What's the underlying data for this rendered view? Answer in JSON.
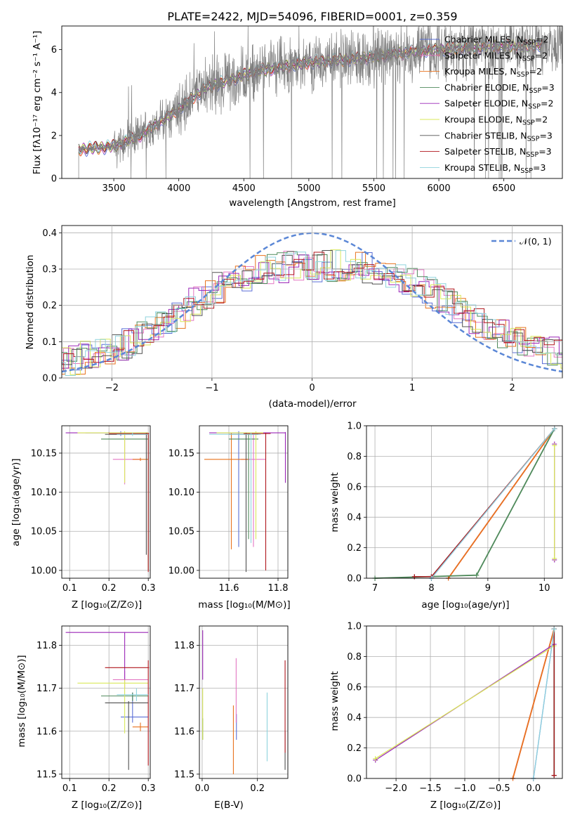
{
  "figure": {
    "title": "PLATE=2422, MJD=54096, FIBERID=0001, z=0.359"
  },
  "models": [
    {
      "name": "Chabrier MILES, N$_{SSP}$=2",
      "label": "Chabrier MILES, N",
      "sub": "SSP",
      "tail": "=2",
      "color": "#5b6fd6"
    },
    {
      "name": "Salpeter MILES, N$_{SSP}$=2",
      "label": "Salpeter MILES, N",
      "sub": "SSP",
      "tail": "=2",
      "color": "#e377c2"
    },
    {
      "name": "Kroupa MILES, N$_{SSP}$=2",
      "label": "Kroupa MILES, N",
      "sub": "SSP",
      "tail": "=2",
      "color": "#e8731e"
    },
    {
      "name": "Chabrier ELODIE, N$_{SSP}$=3",
      "label": "Chabrier ELODIE, N",
      "sub": "SSP",
      "tail": "=3",
      "color": "#4f8a5b"
    },
    {
      "name": "Salpeter ELODIE, N$_{SSP}$=2",
      "label": "Salpeter ELODIE, N",
      "sub": "SSP",
      "tail": "=2",
      "color": "#9b27b8"
    },
    {
      "name": "Kroupa ELODIE, N$_{SSP}$=2",
      "label": "Kroupa ELODIE, N",
      "sub": "SSP",
      "tail": "=2",
      "color": "#d9e85a"
    },
    {
      "name": "Chabrier STELIB, N$_{SSP}$=3",
      "label": "Chabrier STELIB, N",
      "sub": "SSP",
      "tail": "=3",
      "color": "#505050"
    },
    {
      "name": "Salpeter STELIB, N$_{SSP}$=3",
      "label": "Salpeter STELIB, N",
      "sub": "SSP",
      "tail": "=3",
      "color": "#b0161c"
    },
    {
      "name": "Kroupa STELIB, N$_{SSP}$=3",
      "label": "Kroupa STELIB, N",
      "sub": "SSP",
      "tail": "=3",
      "color": "#8fd3dd"
    }
  ],
  "chart_data": [
    {
      "id": "spectrum",
      "type": "line",
      "xlabel": "wavelength [Angstrom, rest frame]",
      "ylabel": "Flux [$f_\\lambda 10^{-17}$ erg cm$^{-2}$ s$^{-1}$ A$^{-1}$]",
      "xlim": [
        3100,
        6950
      ],
      "ylim": [
        0,
        7.1
      ],
      "xticks": [
        3500,
        4000,
        4500,
        5000,
        5500,
        6000,
        6500
      ],
      "yticks": [
        0,
        2,
        4,
        6
      ],
      "data_color": "#7f7f7f",
      "data_start": 3230,
      "continuum": {
        "x": [
          3230,
          3500,
          3700,
          3950,
          4200,
          4600,
          5000,
          5400,
          5800,
          6200,
          6800
        ],
        "y": [
          1.35,
          1.5,
          2.0,
          3.0,
          4.2,
          5.0,
          5.4,
          5.6,
          5.9,
          6.1,
          6.2
        ]
      },
      "legend": "top-right",
      "grid": false
    },
    {
      "id": "residuals",
      "type": "histogram",
      "xlabel": "(data-model)/error",
      "ylabel": "Normed distribution",
      "xlim": [
        -2.5,
        2.5
      ],
      "ylim": [
        0,
        0.42
      ],
      "xticks": [
        -2,
        -1,
        0,
        1,
        2
      ],
      "yticks": [
        0.0,
        0.1,
        0.2,
        0.3,
        0.4
      ],
      "bin_width": 0.1,
      "gaussian": {
        "label": "$\\mathcal{N}(0,1)$",
        "color": "#5b87d6"
      },
      "envelope": {
        "x": [
          -2.5,
          -2.0,
          -1.5,
          -1.0,
          -0.5,
          0.0,
          0.5,
          1.0,
          1.5,
          2.0,
          2.5
        ],
        "y": [
          0.04,
          0.08,
          0.14,
          0.24,
          0.3,
          0.31,
          0.31,
          0.27,
          0.18,
          0.11,
          0.07
        ]
      },
      "legend": "top-right",
      "grid": true
    },
    {
      "id": "age-vs-Z",
      "type": "scatter",
      "xlabel": "Z [$\\log_{10}(Z/Z_\\odot)$]",
      "ylabel": "age  [$\\log_{10}(age/yr)$]",
      "xlim": [
        0.08,
        0.305
      ],
      "ylim": [
        9.99,
        10.185
      ],
      "xticks": [
        0.1,
        0.2,
        0.3
      ],
      "yticks": [
        10.0,
        10.05,
        10.1,
        10.15
      ],
      "points": [
        {
          "model": 0,
          "x": 0.23,
          "y": 10.176,
          "xlo": 0.14,
          "xhi": 0.3,
          "ylo": 10.172,
          "yhi": 10.178
        },
        {
          "model": 1,
          "x": 0.24,
          "y": 10.142,
          "xlo": 0.21,
          "xhi": 0.28,
          "ylo": 10.11,
          "yhi": 10.176
        },
        {
          "model": 2,
          "x": 0.28,
          "y": 10.142,
          "xlo": 0.26,
          "xhi": 0.3,
          "ylo": 10.14,
          "yhi": 10.144
        },
        {
          "model": 3,
          "x": 0.3,
          "y": 10.168,
          "xlo": 0.18,
          "xhi": 0.3,
          "ylo": 10.0,
          "yhi": 10.175
        },
        {
          "model": 4,
          "x": 0.2,
          "y": 10.176,
          "xlo": 0.09,
          "xhi": 0.3,
          "ylo": 10.175,
          "yhi": 10.177
        },
        {
          "model": 5,
          "x": 0.24,
          "y": 10.176,
          "xlo": 0.12,
          "xhi": 0.3,
          "ylo": 10.112,
          "yhi": 10.178
        },
        {
          "model": 6,
          "x": 0.295,
          "y": 10.174,
          "xlo": 0.19,
          "xhi": 0.3,
          "ylo": 10.02,
          "yhi": 10.176
        },
        {
          "model": 7,
          "x": 0.3,
          "y": 10.175,
          "xlo": 0.2,
          "xhi": 0.302,
          "ylo": 9.998,
          "yhi": 10.176
        },
        {
          "model": 8,
          "x": 0.26,
          "y": 10.174,
          "xlo": 0.22,
          "xhi": 0.3,
          "ylo": 10.172,
          "yhi": 10.176
        }
      ],
      "grid": true
    },
    {
      "id": "age-vs-mass",
      "type": "scatter",
      "xlabel": "mass [$\\log_{10}(M/M_\\odot)$]",
      "ylabel": "",
      "xlim": [
        11.48,
        11.84
      ],
      "ylim": [
        9.99,
        10.185
      ],
      "xticks": [
        11.6,
        11.8
      ],
      "yticks": [
        10.0,
        10.05,
        10.1,
        10.15
      ],
      "points": [
        {
          "model": 0,
          "x": 11.64,
          "y": 10.176,
          "xlo": 11.55,
          "xhi": 11.74,
          "ylo": 10.03,
          "yhi": 10.178
        },
        {
          "model": 1,
          "x": 11.7,
          "y": 10.142,
          "xlo": 11.65,
          "xhi": 11.75,
          "ylo": 10.03,
          "yhi": 10.176
        },
        {
          "model": 2,
          "x": 11.61,
          "y": 10.142,
          "xlo": 11.5,
          "xhi": 11.68,
          "ylo": 10.027,
          "yhi": 10.176
        },
        {
          "model": 3,
          "x": 11.68,
          "y": 10.168,
          "xlo": 11.6,
          "xhi": 11.72,
          "ylo": 10.04,
          "yhi": 10.175
        },
        {
          "model": 4,
          "x": 11.83,
          "y": 10.176,
          "xlo": 11.52,
          "xhi": 11.83,
          "ylo": 10.112,
          "yhi": 10.177
        },
        {
          "model": 5,
          "x": 11.71,
          "y": 10.176,
          "xlo": 11.55,
          "xhi": 11.74,
          "ylo": 10.04,
          "yhi": 10.178
        },
        {
          "model": 6,
          "x": 11.67,
          "y": 10.174,
          "xlo": 11.6,
          "xhi": 11.72,
          "ylo": 9.998,
          "yhi": 10.176
        },
        {
          "model": 7,
          "x": 11.75,
          "y": 10.175,
          "xlo": 11.66,
          "xhi": 11.77,
          "ylo": 10.0,
          "yhi": 10.176
        },
        {
          "model": 8,
          "x": 11.69,
          "y": 10.174,
          "xlo": 11.52,
          "xhi": 11.73,
          "ylo": 10.035,
          "yhi": 10.176
        }
      ],
      "grid": true
    },
    {
      "id": "mass-vs-Z",
      "type": "scatter",
      "xlabel": "Z [$\\log_{10}(Z/Z_\\odot)$]",
      "ylabel": "mass [$\\log_{10}(M/M_\\odot)$]",
      "xlim": [
        0.08,
        0.305
      ],
      "ylim": [
        11.49,
        11.845
      ],
      "xticks": [
        0.1,
        0.2,
        0.3
      ],
      "yticks": [
        11.5,
        11.6,
        11.7,
        11.8
      ],
      "points": [
        {
          "model": 0,
          "x": 0.26,
          "y": 11.633,
          "xlo": 0.23,
          "xhi": 0.3,
          "ylo": 11.62,
          "yhi": 11.69
        },
        {
          "model": 1,
          "x": 0.24,
          "y": 11.72,
          "xlo": 0.21,
          "xhi": 0.3,
          "ylo": 11.7,
          "yhi": 11.74
        },
        {
          "model": 2,
          "x": 0.28,
          "y": 11.61,
          "xlo": 0.26,
          "xhi": 0.3,
          "ylo": 11.6,
          "yhi": 11.62
        },
        {
          "model": 3,
          "x": 0.26,
          "y": 11.682,
          "xlo": 0.18,
          "xhi": 0.3,
          "ylo": 11.67,
          "yhi": 11.69
        },
        {
          "model": 4,
          "x": 0.24,
          "y": 11.83,
          "xlo": 0.09,
          "xhi": 0.3,
          "ylo": 11.72,
          "yhi": 11.831
        },
        {
          "model": 5,
          "x": 0.24,
          "y": 11.712,
          "xlo": 0.12,
          "xhi": 0.3,
          "ylo": 11.595,
          "yhi": 11.72
        },
        {
          "model": 6,
          "x": 0.25,
          "y": 11.666,
          "xlo": 0.19,
          "xhi": 0.3,
          "ylo": 11.51,
          "yhi": 11.67
        },
        {
          "model": 7,
          "x": 0.3,
          "y": 11.748,
          "xlo": 0.19,
          "xhi": 0.302,
          "ylo": 11.52,
          "yhi": 11.765
        },
        {
          "model": 8,
          "x": 0.27,
          "y": 11.685,
          "xlo": 0.22,
          "xhi": 0.3,
          "ylo": 11.67,
          "yhi": 11.7
        }
      ],
      "grid": true
    },
    {
      "id": "mass-vs-EBV",
      "type": "scatter",
      "xlabel": "E(B-V)",
      "ylabel": "",
      "xlim": [
        -0.01,
        0.31
      ],
      "ylim": [
        11.49,
        11.845
      ],
      "xticks": [
        0.0,
        0.2
      ],
      "yticks": [
        11.5,
        11.6,
        11.7,
        11.8
      ],
      "points": [
        {
          "model": 0,
          "x": 0.124,
          "y": 11.61,
          "ylo": 11.58,
          "yhi": 11.64
        },
        {
          "model": 1,
          "x": 0.123,
          "y": 11.7,
          "ylo": 11.62,
          "yhi": 11.77
        },
        {
          "model": 2,
          "x": 0.113,
          "y": 11.58,
          "ylo": 11.5,
          "yhi": 11.66
        },
        {
          "model": 3,
          "x": 0.002,
          "y": 11.6,
          "ylo": 11.58,
          "yhi": 11.63
        },
        {
          "model": 4,
          "x": 0.002,
          "y": 11.78,
          "ylo": 11.72,
          "yhi": 11.835
        },
        {
          "model": 5,
          "x": 0.002,
          "y": 11.64,
          "ylo": 11.58,
          "yhi": 11.7
        },
        {
          "model": 6,
          "x": 0.3,
          "y": 11.56,
          "ylo": 11.51,
          "yhi": 11.6
        },
        {
          "model": 7,
          "x": 0.3,
          "y": 11.67,
          "ylo": 11.55,
          "yhi": 11.765
        },
        {
          "model": 8,
          "x": 0.235,
          "y": 11.62,
          "ylo": 11.53,
          "yhi": 11.69
        }
      ],
      "grid": true
    },
    {
      "id": "weight-vs-age",
      "type": "line",
      "xlabel": "age  [$\\log_{10}(age/yr)$]",
      "ylabel": "mass weight",
      "xlim": [
        6.85,
        10.32
      ],
      "ylim": [
        0,
        1
      ],
      "xticks": [
        7,
        8,
        9,
        10
      ],
      "yticks": [
        0.0,
        0.2,
        0.4,
        0.6,
        0.8,
        1.0
      ],
      "series": [
        {
          "model": 0,
          "x": [
            8.0,
            10.18
          ],
          "y": [
            0.0,
            0.98
          ]
        },
        {
          "model": 1,
          "x": [
            8.3,
            10.18
          ],
          "y": [
            0.0,
            0.98
          ]
        },
        {
          "model": 2,
          "x": [
            8.3,
            10.18
          ],
          "y": [
            0.0,
            0.98
          ]
        },
        {
          "model": 3,
          "x": [
            7.0,
            8.8,
            10.18
          ],
          "y": [
            0.0,
            0.02,
            0.98
          ]
        },
        {
          "model": 4,
          "x": [
            10.18,
            10.18
          ],
          "y": [
            0.12,
            0.88
          ]
        },
        {
          "model": 5,
          "x": [
            10.18,
            10.18
          ],
          "y": [
            0.13,
            0.87
          ]
        },
        {
          "model": 6,
          "x": [
            7.7,
            8.0,
            10.18
          ],
          "y": [
            0.01,
            0.01,
            0.98
          ]
        },
        {
          "model": 7,
          "x": [
            7.7,
            8.0,
            10.18
          ],
          "y": [
            0.01,
            0.01,
            0.98
          ]
        },
        {
          "model": 8,
          "x": [
            8.0,
            10.18
          ],
          "y": [
            0.0,
            0.98
          ]
        }
      ],
      "grid": true
    },
    {
      "id": "weight-vs-Z",
      "type": "line",
      "xlabel": "Z [$\\log_{10}(Z/Z_\\odot)$]",
      "ylabel": "mass weight",
      "xlim": [
        -2.43,
        0.42
      ],
      "ylim": [
        0,
        1
      ],
      "xticks": [
        -2.0,
        -1.5,
        -1.0,
        -0.5,
        0.0
      ],
      "yticks": [
        0.0,
        0.2,
        0.4,
        0.6,
        0.8,
        1.0
      ],
      "series": [
        {
          "model": 0,
          "x": [
            0.0,
            0.3
          ],
          "y": [
            0.0,
            0.98
          ]
        },
        {
          "model": 1,
          "x": [
            -0.3,
            0.3
          ],
          "y": [
            0.0,
            0.98
          ]
        },
        {
          "model": 2,
          "x": [
            -0.3,
            0.3
          ],
          "y": [
            0.0,
            0.98
          ]
        },
        {
          "model": 3,
          "x": [
            0.3,
            0.3
          ],
          "y": [
            0.02,
            0.98
          ]
        },
        {
          "model": 4,
          "x": [
            -2.3,
            0.3
          ],
          "y": [
            0.12,
            0.88
          ]
        },
        {
          "model": 5,
          "x": [
            -2.3,
            0.3
          ],
          "y": [
            0.13,
            0.87
          ]
        },
        {
          "model": 6,
          "x": [
            0.3,
            0.3
          ],
          "y": [
            0.02,
            0.98
          ]
        },
        {
          "model": 7,
          "x": [
            0.3,
            0.3
          ],
          "y": [
            0.02,
            0.98
          ]
        },
        {
          "model": 8,
          "x": [
            0.0,
            0.3
          ],
          "y": [
            0.0,
            0.98
          ]
        }
      ],
      "grid": true
    }
  ],
  "display": {
    "spectrum_xlabel": "wavelength [Angstrom, rest frame]",
    "spectrum_ylabel": "Flux [fλ10⁻¹⁷ erg cm⁻² s⁻¹ A⁻¹]",
    "resid_xlabel": "(data-model)/error",
    "resid_ylabel": "Normed distribution",
    "gauss_label": "𝒩(0, 1)",
    "z_label": "Z [log₁₀(Z/Z⊙)]",
    "age_label": "age  [log₁₀(age/yr)]",
    "mass_label": "mass [log₁₀(M/M⊙)]",
    "ebv_label": "E(B-V)",
    "weight_label": "mass weight"
  }
}
